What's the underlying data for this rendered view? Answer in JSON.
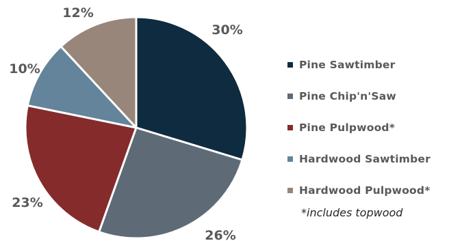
{
  "chart_data": {
    "type": "pie",
    "categories": [
      "Pine Sawtimber",
      "Pine Chip'n'Saw",
      "Pine Pulpwood*",
      "Hardwood Sawtimber",
      "Hardwood Pulpwood*"
    ],
    "values": [
      30,
      26,
      23,
      10,
      12
    ],
    "value_labels": [
      "30%",
      "26%",
      "23%",
      "10%",
      "12%"
    ],
    "colors": [
      "#0f2b3f",
      "#5e6b77",
      "#852b2b",
      "#63849a",
      "#978679"
    ],
    "title": "",
    "legend_placement": "right",
    "footnote": "*includes topwood"
  }
}
